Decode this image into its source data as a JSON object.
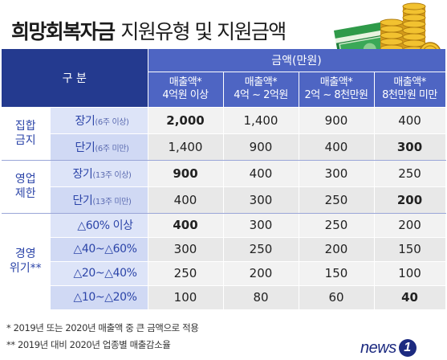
{
  "title": {
    "bold": "희망회복자금",
    "light": "지원유형 및 지원금액"
  },
  "header": {
    "group_label": "구 분",
    "amount_label": "금액(만원)",
    "columns": [
      {
        "line1": "매출액*",
        "line2": "4억원 이상"
      },
      {
        "line1": "매출액*",
        "line2": "4억 ~ 2억원"
      },
      {
        "line1": "매출액*",
        "line2": "2억 ~ 8천만원"
      },
      {
        "line1": "매출액*",
        "line2": "8천만원 미만"
      }
    ]
  },
  "groups": [
    {
      "category": [
        "집합",
        "금지"
      ],
      "rows": [
        {
          "main": "장기",
          "paren": "(6주 이상)",
          "values": [
            "2,000",
            "1,400",
            "900",
            "400"
          ]
        },
        {
          "main": "단기",
          "paren": "(6주 미만)",
          "values": [
            "1,400",
            "900",
            "400",
            "300"
          ]
        }
      ]
    },
    {
      "category": [
        "영업",
        "제한"
      ],
      "rows": [
        {
          "main": "장기",
          "paren": "(13주 이상)",
          "values": [
            "900",
            "400",
            "300",
            "250"
          ]
        },
        {
          "main": "단기",
          "paren": "(13주 미만)",
          "values": [
            "400",
            "300",
            "250",
            "200"
          ]
        }
      ]
    },
    {
      "category": [
        "경영",
        "위기**"
      ],
      "rows": [
        {
          "main": "△60% 이상",
          "paren": "",
          "values": [
            "400",
            "300",
            "250",
            "200"
          ]
        },
        {
          "main": "△40~△60%",
          "paren": "",
          "values": [
            "300",
            "250",
            "200",
            "150"
          ]
        },
        {
          "main": "△20~△40%",
          "paren": "",
          "values": [
            "250",
            "200",
            "150",
            "100"
          ]
        },
        {
          "main": "△10~△20%",
          "paren": "",
          "values": [
            "100",
            "80",
            "60",
            "40"
          ]
        }
      ]
    }
  ],
  "notes": [
    "* 2019년 또는 2020년 매출액 중 큰 금액으로 적용",
    "** 2019년 대비 2020년 업종별 매출감소율"
  ],
  "logo": {
    "text": "news",
    "badge": "1"
  },
  "colors": {
    "header_dark": "#243a8f",
    "header_light": "#4e65c3",
    "label_blue": "#2b44a8"
  }
}
